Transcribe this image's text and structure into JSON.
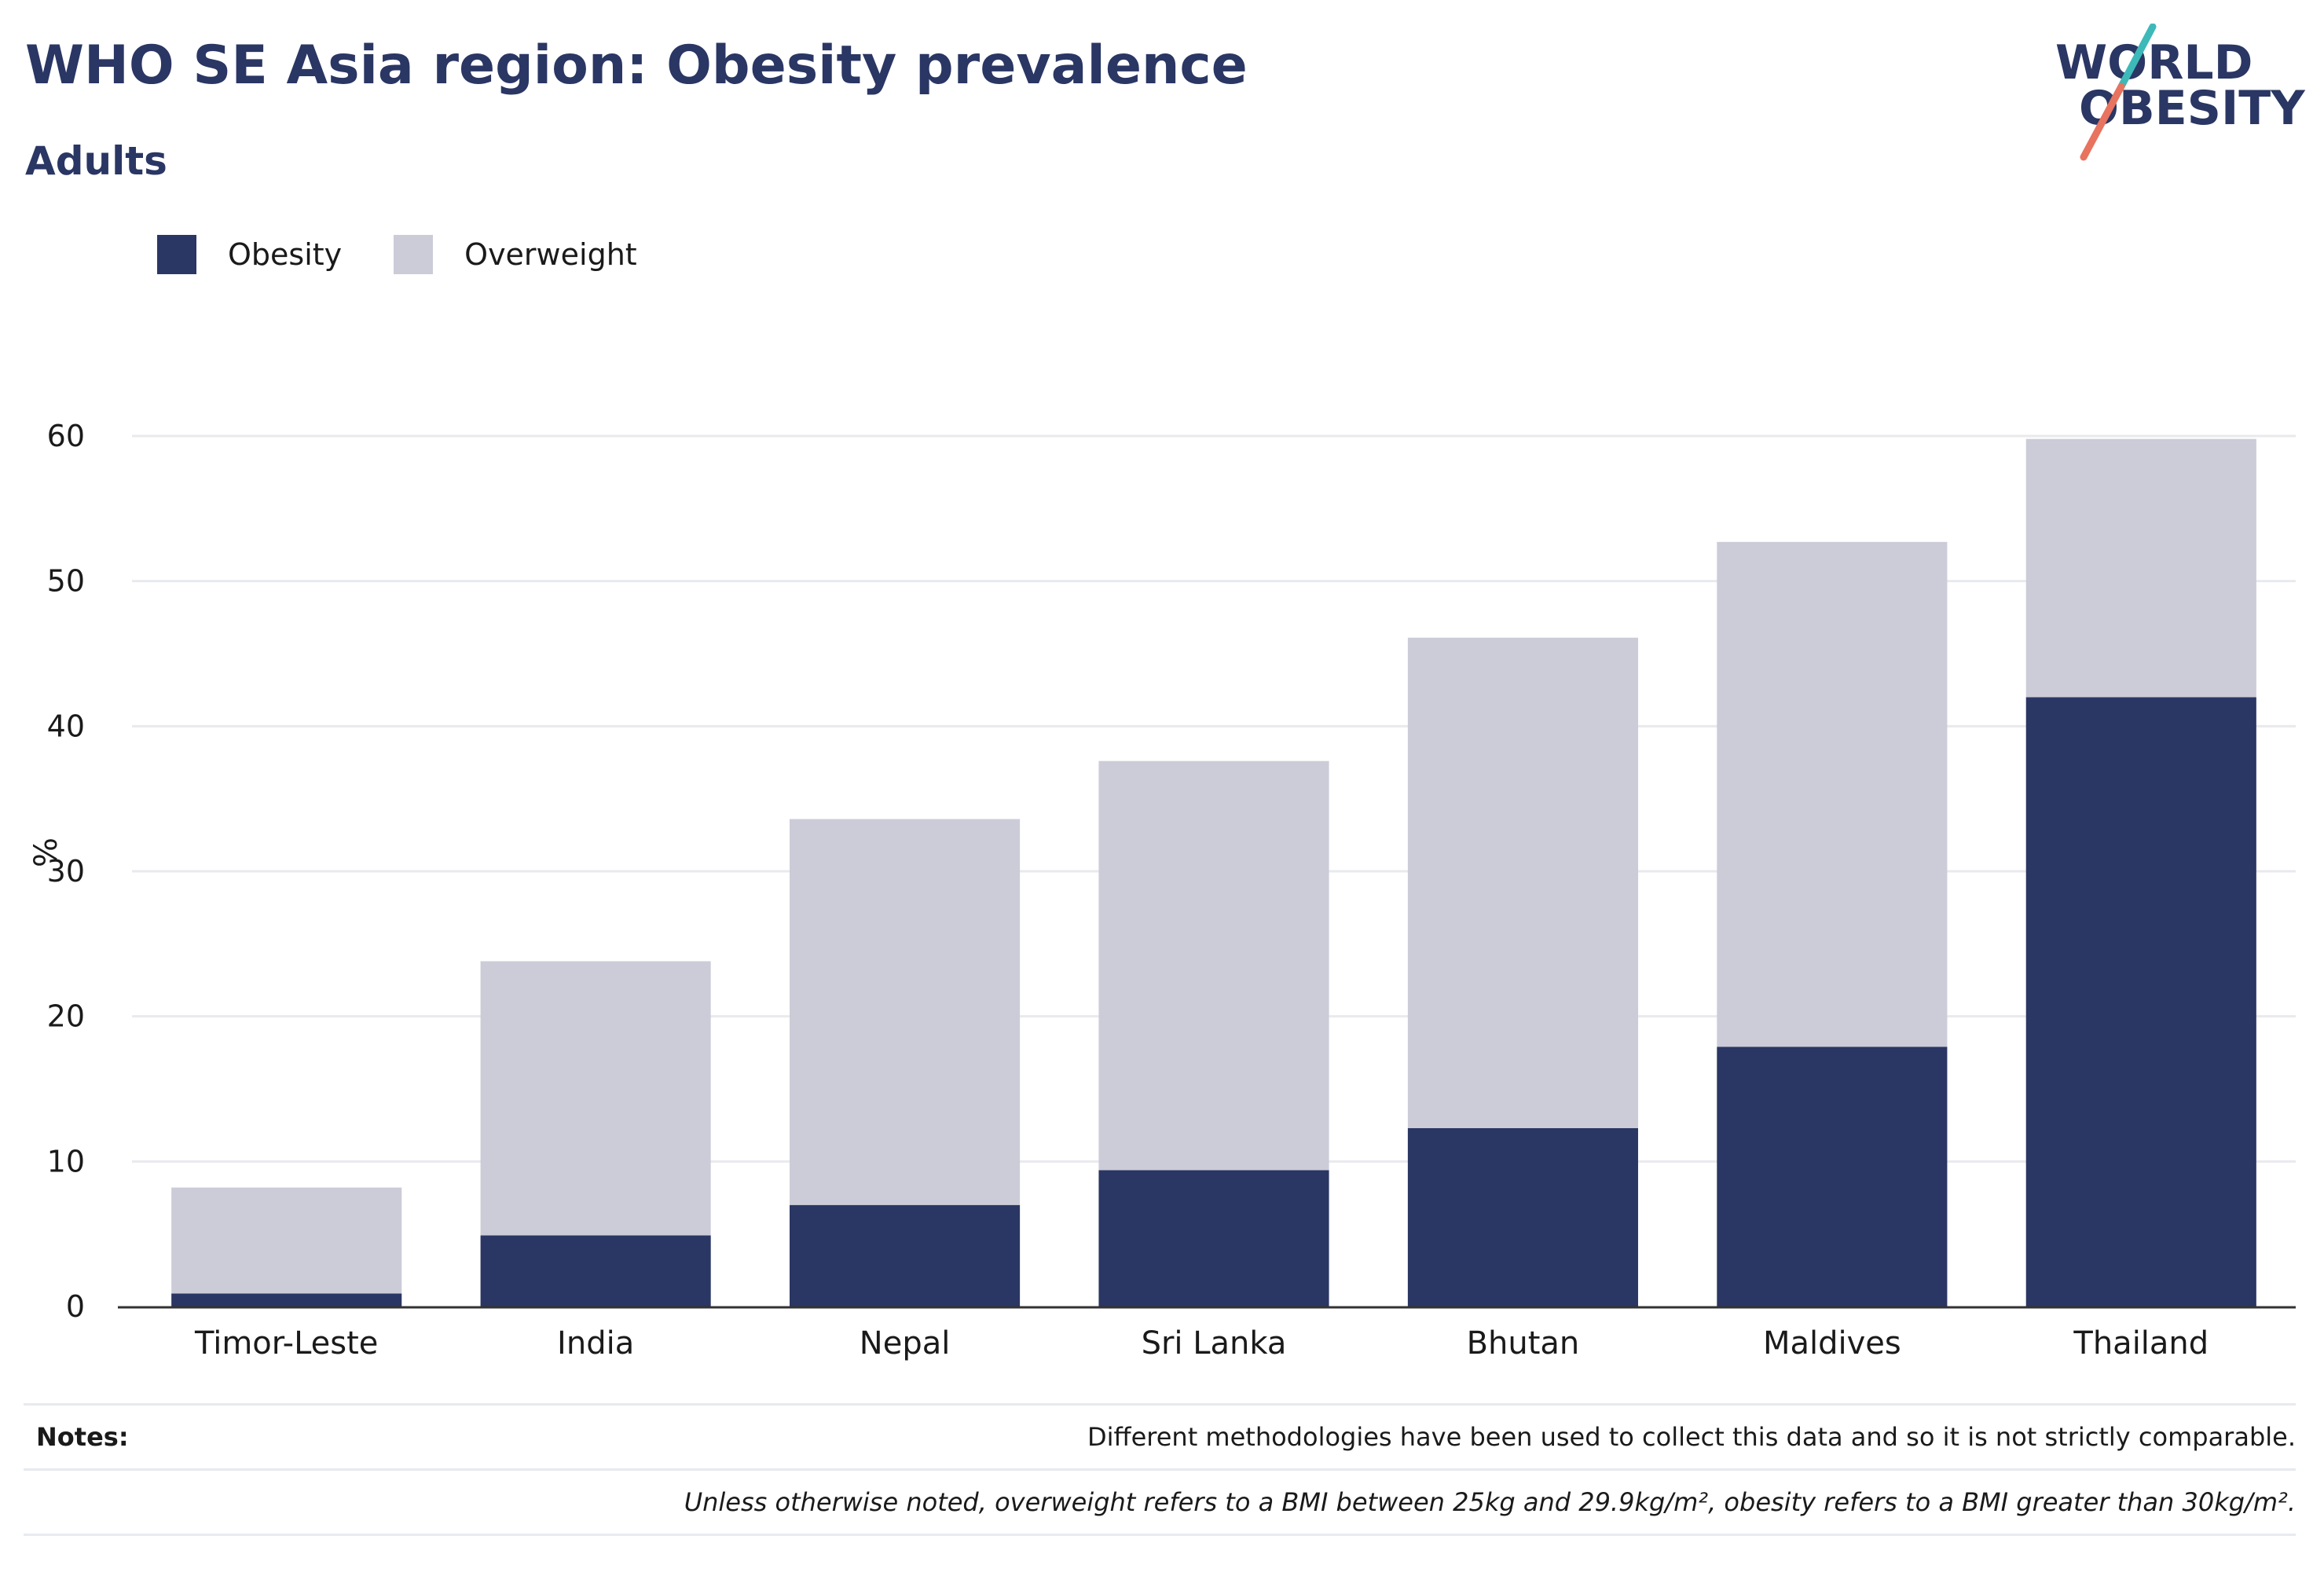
{
  "header": {
    "title": "WHO SE Asia region: Obesity prevalence",
    "subtitle": "Adults"
  },
  "logo": {
    "line1": "WORLD",
    "line2": "OBESITY",
    "icon": "world-obesity-logo"
  },
  "colors": {
    "obesity": "#2a3663",
    "overweight": "#cbccd7",
    "logo_teal": "#3db9b9",
    "logo_coral": "#e8735e"
  },
  "chart_data": {
    "type": "bar",
    "stacked": true,
    "categories": [
      "Timor-Leste",
      "India",
      "Nepal",
      "Sri Lanka",
      "Bhutan",
      "Maldives",
      "Thailand"
    ],
    "series": [
      {
        "name": "Obesity",
        "values": [
          0.9,
          4.9,
          7.0,
          9.4,
          12.3,
          17.9,
          42.0
        ]
      },
      {
        "name": "Overweight",
        "values": [
          7.3,
          18.9,
          26.6,
          28.2,
          33.8,
          34.8,
          17.8
        ]
      }
    ],
    "title": "",
    "xlabel": "",
    "ylabel": "%",
    "ylim": [
      0,
      60
    ],
    "yticks": [
      0,
      10,
      20,
      30,
      40,
      50,
      60
    ],
    "grid": true,
    "legend_position": "top-left"
  },
  "notes": {
    "label": "Notes:",
    "items": [
      "Different methodologies have been used to collect this data and so it is not strictly comparable.",
      "Unless otherwise noted, overweight refers to a BMI between 25kg and 29.9kg/m², obesity refers to a BMI greater than 30kg/m²."
    ]
  }
}
